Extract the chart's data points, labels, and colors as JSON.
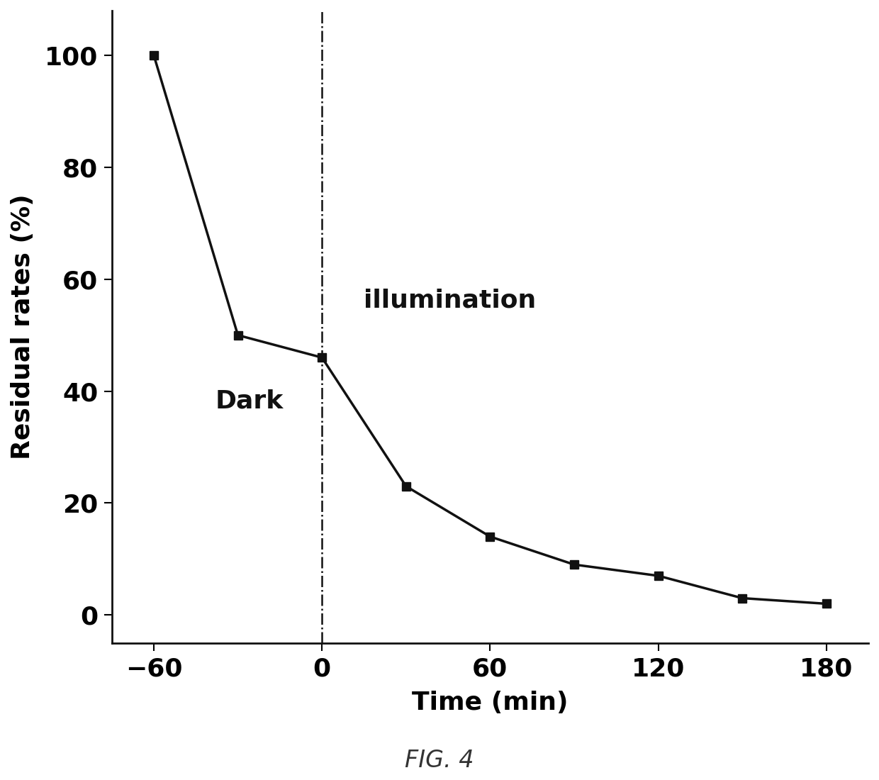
{
  "x": [
    -60,
    -30,
    0,
    30,
    60,
    90,
    120,
    150,
    180
  ],
  "y": [
    100,
    50,
    46,
    23,
    14,
    9,
    7,
    3,
    2
  ],
  "xlabel": "Time (min)",
  "ylabel": "Residual rates (%)",
  "caption": "FIG. 4",
  "dark_label": "Dark",
  "illumination_label": "illumination",
  "vline_x": 0,
  "xlim": [
    -75,
    195
  ],
  "ylim": [
    -5,
    108
  ],
  "xticks": [
    -60,
    0,
    60,
    120,
    180
  ],
  "yticks": [
    0,
    20,
    40,
    60,
    80,
    100
  ],
  "line_color": "#111111",
  "marker": "s",
  "marker_size": 9,
  "marker_color": "#111111",
  "line_width": 2.5,
  "background_color": "#ffffff",
  "label_fontsize": 26,
  "tick_fontsize": 26,
  "annotation_fontsize": 26,
  "caption_fontsize": 24,
  "dark_x": -38,
  "dark_y": 37,
  "illum_x": 15,
  "illum_y": 55
}
